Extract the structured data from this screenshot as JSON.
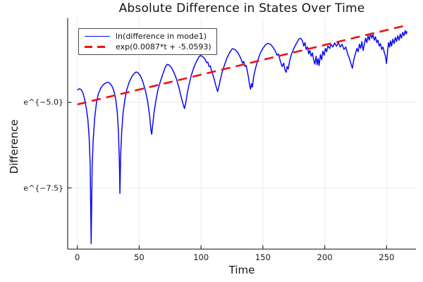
{
  "title": "Absolute Difference in States Over Time",
  "chart_data": {
    "type": "line",
    "title": "Absolute Difference in States Over Time",
    "xlabel": "Time",
    "ylabel": "Difference",
    "xlim": [
      -7.8,
      273.7
    ],
    "ylim_ln": [
      -9.29,
      -2.53
    ],
    "grid": true,
    "legend_position": "top-left",
    "x_ticks": [
      0,
      50,
      100,
      150,
      200,
      250
    ],
    "y_ticks": [
      {
        "ln": -5.0,
        "label": "e^{−5.0}"
      },
      {
        "ln": -7.5,
        "label": "e^{−7.5}"
      }
    ],
    "colors": {
      "grid": "#ececec",
      "spine": "#2e2e2e",
      "tick": "#2e2e2e",
      "text": "#141414"
    },
    "series": [
      {
        "name": "ln(difference in mode1)",
        "color": "#0a0aee",
        "style": "solid",
        "width": 1.5,
        "points": [
          [
            0,
            -4.64
          ],
          [
            1.5,
            -4.6
          ],
          [
            3,
            -4.62
          ],
          [
            4.5,
            -4.72
          ],
          [
            6,
            -4.92
          ],
          [
            7.5,
            -5.22
          ],
          [
            8.5,
            -5.5
          ],
          [
            9.5,
            -6
          ],
          [
            10.4,
            -6.8
          ],
          [
            11.2,
            -9.13
          ],
          [
            12,
            -6.9
          ],
          [
            12.8,
            -6.1
          ],
          [
            14,
            -5.45
          ],
          [
            15.5,
            -5
          ],
          [
            17,
            -4.75
          ],
          [
            19,
            -4.58
          ],
          [
            21,
            -4.48
          ],
          [
            23,
            -4.43
          ],
          [
            24.5,
            -4.41
          ],
          [
            26,
            -4.43
          ],
          [
            28,
            -4.52
          ],
          [
            29.5,
            -4.66
          ],
          [
            31,
            -4.9
          ],
          [
            32.3,
            -5.3
          ],
          [
            33.3,
            -5.9
          ],
          [
            34,
            -6.8
          ],
          [
            34.4,
            -7.66
          ],
          [
            35,
            -6.6
          ],
          [
            35.8,
            -5.9
          ],
          [
            37,
            -5.3
          ],
          [
            38.5,
            -4.9
          ],
          [
            40,
            -4.62
          ],
          [
            42,
            -4.4
          ],
          [
            44,
            -4.25
          ],
          [
            46,
            -4.15
          ],
          [
            47.5,
            -4.11
          ],
          [
            49,
            -4.13
          ],
          [
            51,
            -4.22
          ],
          [
            53,
            -4.4
          ],
          [
            55,
            -4.65
          ],
          [
            57,
            -5
          ],
          [
            58.5,
            -5.4
          ],
          [
            59.6,
            -5.85
          ],
          [
            60.1,
            -5.93
          ],
          [
            60.8,
            -5.7
          ],
          [
            62,
            -5.3
          ],
          [
            63.5,
            -4.95
          ],
          [
            65,
            -4.65
          ],
          [
            67,
            -4.4
          ],
          [
            69,
            -4.18
          ],
          [
            71,
            -3.98
          ],
          [
            72.5,
            -3.89
          ],
          [
            74,
            -3.9
          ],
          [
            76,
            -3.98
          ],
          [
            78,
            -4.12
          ],
          [
            80,
            -4.3
          ],
          [
            82,
            -4.55
          ],
          [
            84,
            -4.85
          ],
          [
            85.5,
            -5.05
          ],
          [
            86.6,
            -5.18
          ],
          [
            87.6,
            -5.02
          ],
          [
            89,
            -4.7
          ],
          [
            90.5,
            -4.45
          ],
          [
            92,
            -4.22
          ],
          [
            94,
            -4
          ],
          [
            96,
            -3.82
          ],
          [
            98,
            -3.68
          ],
          [
            99.5,
            -3.63
          ],
          [
            101,
            -3.65
          ],
          [
            103,
            -3.72
          ],
          [
            104.5,
            -3.84
          ],
          [
            105.5,
            -3.82
          ],
          [
            106.5,
            -3.95
          ],
          [
            107.5,
            -3.93
          ],
          [
            108.5,
            -4.08
          ],
          [
            109.5,
            -4.18
          ],
          [
            110.5,
            -4.3
          ],
          [
            111.5,
            -4.45
          ],
          [
            112.5,
            -4.58
          ],
          [
            113.4,
            -4.68
          ],
          [
            114.3,
            -4.55
          ],
          [
            115.5,
            -4.35
          ],
          [
            117,
            -4.12
          ],
          [
            119,
            -3.9
          ],
          [
            121,
            -3.7
          ],
          [
            123,
            -3.55
          ],
          [
            125,
            -3.44
          ],
          [
            126,
            -3.43
          ],
          [
            128,
            -3.47
          ],
          [
            130,
            -3.56
          ],
          [
            132,
            -3.7
          ],
          [
            133.5,
            -3.85
          ],
          [
            134.5,
            -3.8
          ],
          [
            135.5,
            -3.95
          ],
          [
            136.5,
            -3.92
          ],
          [
            137.5,
            -4.1
          ],
          [
            138.5,
            -4.3
          ],
          [
            139.3,
            -4.5
          ],
          [
            140,
            -4.61
          ],
          [
            140.8,
            -4.45
          ],
          [
            141.5,
            -4.55
          ],
          [
            142.5,
            -4.25
          ],
          [
            144,
            -4
          ],
          [
            146,
            -3.75
          ],
          [
            148,
            -3.55
          ],
          [
            150,
            -3.42
          ],
          [
            152,
            -3.32
          ],
          [
            154,
            -3.27
          ],
          [
            156,
            -3.3
          ],
          [
            158,
            -3.38
          ],
          [
            160,
            -3.5
          ],
          [
            161.5,
            -3.62
          ],
          [
            162.5,
            -3.58
          ],
          [
            164,
            -3.78
          ],
          [
            165.5,
            -3.95
          ],
          [
            166.8,
            -3.85
          ],
          [
            167.8,
            -4.05
          ],
          [
            168.8,
            -4.12
          ],
          [
            169.6,
            -3.95
          ],
          [
            170.5,
            -4.02
          ],
          [
            171.5,
            -3.8
          ],
          [
            173,
            -3.6
          ],
          [
            175,
            -3.42
          ],
          [
            177,
            -3.28
          ],
          [
            179,
            -3.15
          ],
          [
            180.5,
            -3.12
          ],
          [
            182,
            -3.2
          ],
          [
            183,
            -3.35
          ],
          [
            184,
            -3.25
          ],
          [
            185,
            -3.45
          ],
          [
            186,
            -3.38
          ],
          [
            187,
            -3.58
          ],
          [
            188,
            -3.48
          ],
          [
            189,
            -3.65
          ],
          [
            190,
            -3.55
          ],
          [
            191,
            -3.75
          ],
          [
            192,
            -3.88
          ],
          [
            193,
            -3.65
          ],
          [
            193.8,
            -3.9
          ],
          [
            194.6,
            -3.72
          ],
          [
            195.4,
            -3.92
          ],
          [
            196.5,
            -3.6
          ],
          [
            197.5,
            -3.75
          ],
          [
            198.5,
            -3.5
          ],
          [
            199.5,
            -3.62
          ],
          [
            200.5,
            -3.42
          ],
          [
            201.5,
            -3.52
          ],
          [
            202.5,
            -3.35
          ],
          [
            204,
            -3.42
          ],
          [
            205,
            -3.3
          ],
          [
            206.5,
            -3.38
          ],
          [
            208,
            -3.26
          ],
          [
            209.5,
            -3.36
          ],
          [
            211,
            -3.25
          ],
          [
            212.5,
            -3.38
          ],
          [
            214,
            -3.3
          ],
          [
            215.5,
            -3.45
          ],
          [
            217,
            -3.38
          ],
          [
            218.5,
            -3.58
          ],
          [
            220,
            -3.72
          ],
          [
            221.3,
            -3.88
          ],
          [
            222.3,
            -4
          ],
          [
            223.3,
            -3.78
          ],
          [
            224.5,
            -3.6
          ],
          [
            226,
            -3.42
          ],
          [
            227,
            -3.52
          ],
          [
            228,
            -3.3
          ],
          [
            229,
            -3.42
          ],
          [
            230,
            -3.22
          ],
          [
            231,
            -3.48
          ],
          [
            232,
            -3.3
          ],
          [
            233,
            -3.12
          ],
          [
            234,
            -3.25
          ],
          [
            235,
            -3.05
          ],
          [
            236,
            -3.18
          ],
          [
            237,
            -2.98
          ],
          [
            238,
            -3.12
          ],
          [
            239,
            -3.02
          ],
          [
            240,
            -3.18
          ],
          [
            241,
            -3.08
          ],
          [
            242,
            -3.25
          ],
          [
            243,
            -3.18
          ],
          [
            244,
            -3.35
          ],
          [
            245,
            -3.28
          ],
          [
            246,
            -3.45
          ],
          [
            247,
            -3.38
          ],
          [
            248,
            -3.52
          ],
          [
            249,
            -3.65
          ],
          [
            249.9,
            -3.86
          ],
          [
            250.8,
            -3.5
          ],
          [
            251.6,
            -3.25
          ],
          [
            252.4,
            -3.38
          ],
          [
            253.2,
            -3.2
          ],
          [
            254,
            -3.35
          ],
          [
            255,
            -3.15
          ],
          [
            256,
            -3.28
          ],
          [
            257,
            -3.1
          ],
          [
            258,
            -3.22
          ],
          [
            259,
            -3.05
          ],
          [
            260,
            -3.18
          ],
          [
            261,
            -3
          ],
          [
            262,
            -3.12
          ],
          [
            263,
            -2.95
          ],
          [
            264,
            -3.05
          ],
          [
            265,
            -2.9
          ],
          [
            265.8,
            -3
          ],
          [
            266.5,
            -2.92
          ]
        ]
      },
      {
        "name": "exp(0.0087*t + -5.0593)",
        "color": "#ee1111",
        "style": "dashed",
        "width": 2.6,
        "slope": 0.0087,
        "intercept": -5.0593,
        "points": [
          [
            0,
            -5.0593
          ],
          [
            267.5,
            -2.7319
          ]
        ]
      }
    ]
  }
}
